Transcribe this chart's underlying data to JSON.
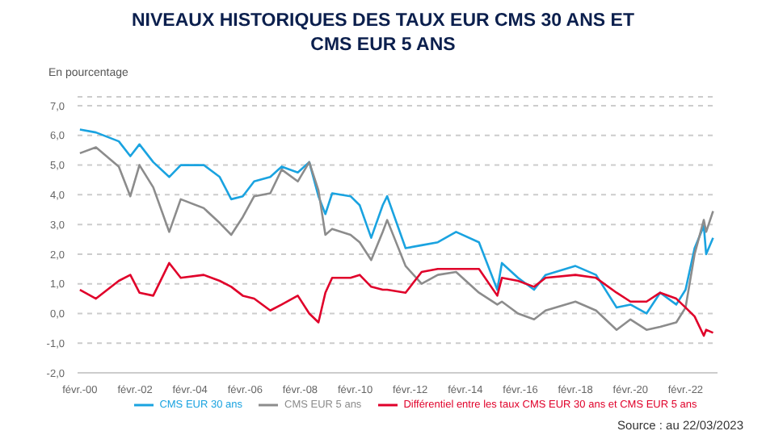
{
  "chart_data": {
    "type": "line",
    "title": "NIVEAUX HISTORIQUES DES TAUX EUR CMS 30 ANS ET\nCMS EUR 5 ANS",
    "ylabel": "En pourcentage",
    "x": [
      "2000-02",
      "2000-09",
      "2001-07",
      "2001-12",
      "2002-04",
      "2002-10",
      "2003-05",
      "2003-10",
      "2004-08",
      "2005-03",
      "2005-08",
      "2006-01",
      "2006-06",
      "2007-01",
      "2007-06",
      "2008-01",
      "2008-06",
      "2008-10",
      "2009-01",
      "2009-04",
      "2009-12",
      "2010-04",
      "2010-09",
      "2011-02",
      "2011-04",
      "2011-12",
      "2012-07",
      "2013-02",
      "2013-10",
      "2014-08",
      "2015-04",
      "2015-06",
      "2016-01",
      "2016-08",
      "2017-01",
      "2018-02",
      "2018-11",
      "2019-08",
      "2020-02",
      "2020-09",
      "2021-03",
      "2021-10",
      "2022-02",
      "2022-06",
      "2022-10",
      "2022-11",
      "2023-02"
    ],
    "series": [
      {
        "name": "CMS EUR 30 ans",
        "color": "#1aa3e0",
        "values": [
          6.2,
          6.1,
          5.8,
          5.3,
          5.7,
          5.1,
          4.6,
          5.0,
          5.0,
          4.6,
          3.85,
          3.95,
          4.45,
          4.6,
          4.95,
          4.75,
          5.1,
          3.95,
          3.35,
          4.05,
          3.95,
          3.65,
          2.55,
          3.65,
          3.95,
          2.2,
          2.3,
          2.4,
          2.75,
          2.4,
          0.8,
          1.7,
          1.2,
          0.8,
          1.3,
          1.6,
          1.3,
          0.2,
          0.3,
          0.0,
          0.7,
          0.3,
          0.8,
          2.2,
          2.95,
          2.0,
          2.55
        ]
      },
      {
        "name": "CMS EUR 5 ans",
        "color": "#8c8c8c",
        "values": [
          5.4,
          5.6,
          4.95,
          3.95,
          5.0,
          4.25,
          2.75,
          3.85,
          3.55,
          3.05,
          2.65,
          3.25,
          3.95,
          4.05,
          4.85,
          4.45,
          5.1,
          4.15,
          2.65,
          2.85,
          2.65,
          2.4,
          1.8,
          2.75,
          3.15,
          1.6,
          1.0,
          1.3,
          1.4,
          0.7,
          0.3,
          0.4,
          0.0,
          -0.2,
          0.1,
          0.4,
          0.1,
          -0.55,
          -0.2,
          -0.55,
          -0.45,
          -0.3,
          0.2,
          2.0,
          3.15,
          2.75,
          3.45
        ]
      },
      {
        "name": "Différentiel entre les taux CMS EUR 30 ans et CMS EUR 5 ans",
        "color": "#e0002a",
        "values": [
          0.8,
          0.5,
          1.1,
          1.3,
          0.7,
          0.6,
          1.7,
          1.2,
          1.3,
          1.1,
          0.9,
          0.6,
          0.5,
          0.1,
          0.3,
          0.6,
          0.0,
          -0.3,
          0.7,
          1.2,
          1.2,
          1.3,
          0.9,
          0.8,
          0.8,
          0.7,
          1.4,
          1.5,
          1.5,
          1.5,
          0.6,
          1.2,
          1.1,
          0.9,
          1.2,
          1.3,
          1.2,
          0.7,
          0.4,
          0.4,
          0.7,
          0.5,
          0.2,
          -0.1,
          -0.75,
          -0.55,
          -0.65
        ]
      }
    ],
    "xlim": [
      "2000-01",
      "2023-04"
    ],
    "xticks": [
      {
        "value": "2000-02",
        "label": "févr.-00"
      },
      {
        "value": "2002-02",
        "label": "févr.-02"
      },
      {
        "value": "2004-02",
        "label": "févr.-04"
      },
      {
        "value": "2006-02",
        "label": "févr.-06"
      },
      {
        "value": "2008-02",
        "label": "févr.-08"
      },
      {
        "value": "2010-02",
        "label": "févr.-10"
      },
      {
        "value": "2012-02",
        "label": "févr.-12"
      },
      {
        "value": "2014-02",
        "label": "févr.-14"
      },
      {
        "value": "2016-02",
        "label": "févr.-16"
      },
      {
        "value": "2018-02",
        "label": "févr.-18"
      },
      {
        "value": "2020-02",
        "label": "févr.-20"
      },
      {
        "value": "2022-02",
        "label": "févr.-22"
      }
    ],
    "ylim": [
      -2,
      7.3
    ],
    "yticks": [
      {
        "value": -2,
        "label": "-2,0"
      },
      {
        "value": -1,
        "label": "-1,0"
      },
      {
        "value": 0,
        "label": "0,0"
      },
      {
        "value": 1,
        "label": "1,0"
      },
      {
        "value": 2,
        "label": "2,0"
      },
      {
        "value": 3,
        "label": "3,0"
      },
      {
        "value": 4,
        "label": "4,0"
      },
      {
        "value": 5,
        "label": "5,0"
      },
      {
        "value": 6,
        "label": "6,0"
      },
      {
        "value": 7,
        "label": "7,0"
      }
    ],
    "grid": "y",
    "legend": "bottom",
    "marker": "none",
    "line_style": "solid",
    "annotations": [
      "Source : au 22/03/2023"
    ]
  }
}
